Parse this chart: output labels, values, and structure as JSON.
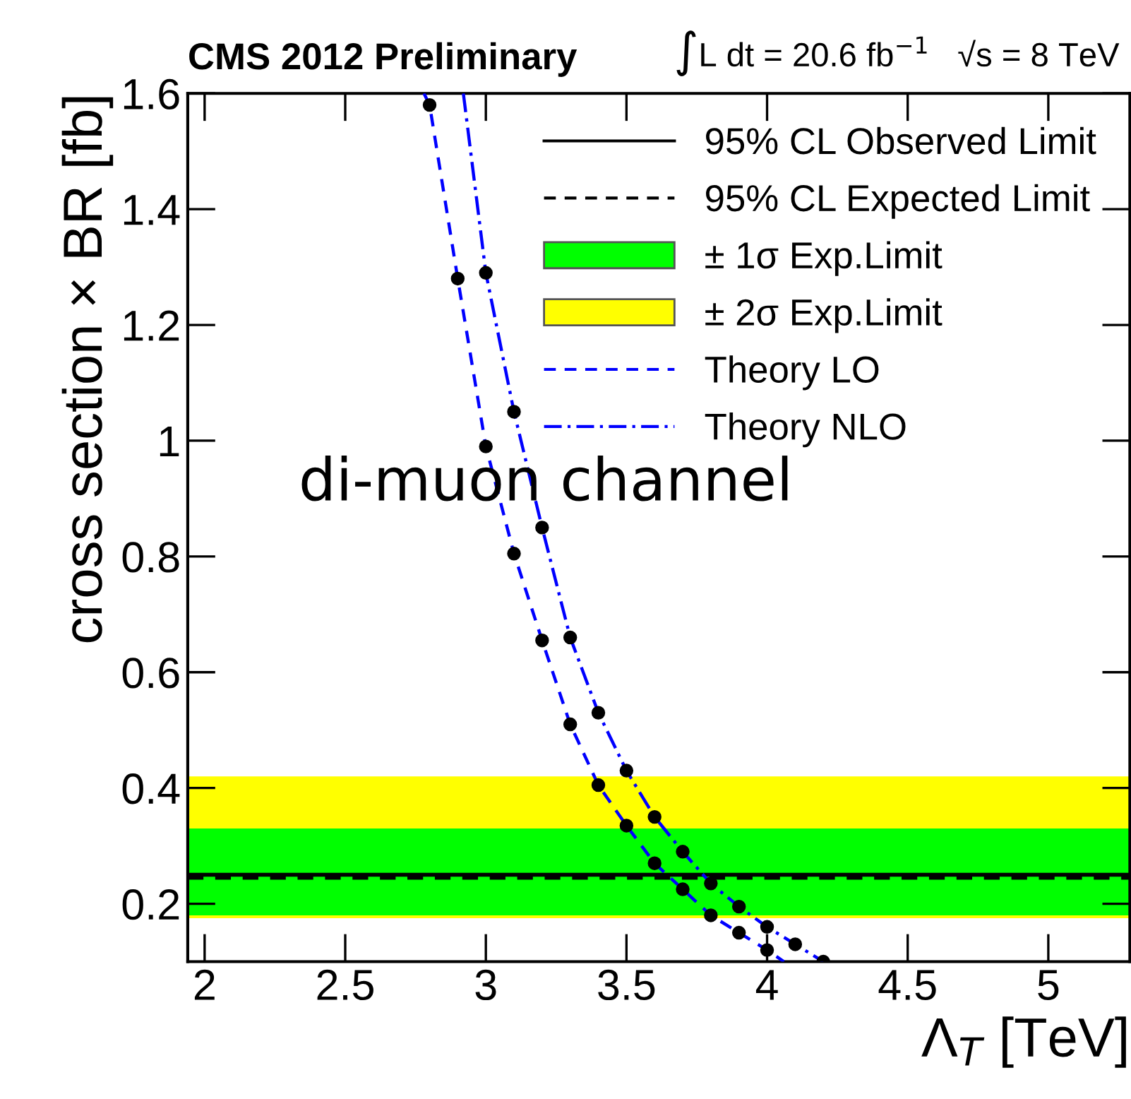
{
  "chart_data": {
    "type": "line",
    "title": "CMS 2012 Preliminary",
    "subtitle": "∫L dt = 20.6 fb$^{−1}$   √s = 8 TeV",
    "xlabel": "Λ$_{T}$ [TeV]",
    "ylabel": "cross section × BR [fb]",
    "annotations": [
      "di-muon channel"
    ],
    "series": [
      {
        "name": "Theory LO",
        "color": "#0000ff",
        "line_style": "dashed",
        "marker": "none",
        "x": [
          2.78,
          2.8,
          2.9,
          3.0,
          3.1,
          3.2,
          3.3,
          3.4,
          3.5,
          3.6,
          3.7,
          3.8,
          3.9,
          4.0,
          4.06
        ],
        "values": [
          1.6,
          1.58,
          1.28,
          0.99,
          0.805,
          0.655,
          0.51,
          0.405,
          0.335,
          0.27,
          0.225,
          0.18,
          0.15,
          0.12,
          0.1
        ]
      },
      {
        "name": "Theory NLO",
        "color": "#0000ff",
        "line_style": "dashdot",
        "marker": "none",
        "x": [
          2.92,
          3.0,
          3.1,
          3.2,
          3.3,
          3.4,
          3.5,
          3.6,
          3.7,
          3.8,
          3.9,
          4.0,
          4.1,
          4.2
        ],
        "values": [
          1.6,
          1.29,
          1.05,
          0.85,
          0.66,
          0.53,
          0.43,
          0.35,
          0.29,
          0.235,
          0.195,
          0.16,
          0.13,
          0.1
        ]
      },
      {
        "type": "scatter",
        "color": "#000000",
        "marker": "circle",
        "x": [
          2.8,
          2.9,
          3.0,
          3.1,
          3.2,
          3.3,
          3.4,
          3.5,
          3.6,
          3.7,
          3.8,
          3.9,
          4.0
        ],
        "values": [
          1.58,
          1.28,
          0.99,
          0.805,
          0.655,
          0.51,
          0.405,
          0.335,
          0.27,
          0.225,
          0.18,
          0.15,
          0.12
        ]
      },
      {
        "type": "scatter",
        "color": "#000000",
        "marker": "circle",
        "x": [
          3.0,
          3.1,
          3.2,
          3.3,
          3.4,
          3.5,
          3.6,
          3.7,
          3.8,
          3.9,
          4.0,
          4.1,
          4.2
        ],
        "values": [
          1.29,
          1.05,
          0.85,
          0.66,
          0.53,
          0.43,
          0.35,
          0.29,
          0.235,
          0.195,
          0.16,
          0.13,
          0.1
        ]
      }
    ],
    "bands": [
      {
        "axis": "y",
        "from": 0.175,
        "to": 0.42,
        "label": "± 2σ Exp.Limit",
        "color": "#ffff00"
      },
      {
        "axis": "y",
        "from": 0.18,
        "to": 0.33,
        "label": "± 1σ Exp.Limit",
        "color": "#00ff00"
      }
    ],
    "ref_lines": [
      {
        "axis": "y",
        "value": 0.25,
        "label": "95% CL Observed Limit",
        "color": "#000000",
        "line_style": "solid"
      },
      {
        "axis": "y",
        "value": 0.245,
        "label": "95% CL Expected Limit",
        "color": "#000000",
        "line_style": "dashed"
      }
    ],
    "xlim": [
      1.94,
      5.29
    ],
    "ylim": [
      0.1,
      1.6
    ],
    "xticks": [
      2,
      2.5,
      3,
      3.5,
      4,
      4.5,
      5
    ],
    "yticks": [
      0.2,
      0.4,
      0.6,
      0.8,
      1,
      1.2,
      1.4,
      1.6
    ],
    "grid": false,
    "legend": "top right"
  }
}
